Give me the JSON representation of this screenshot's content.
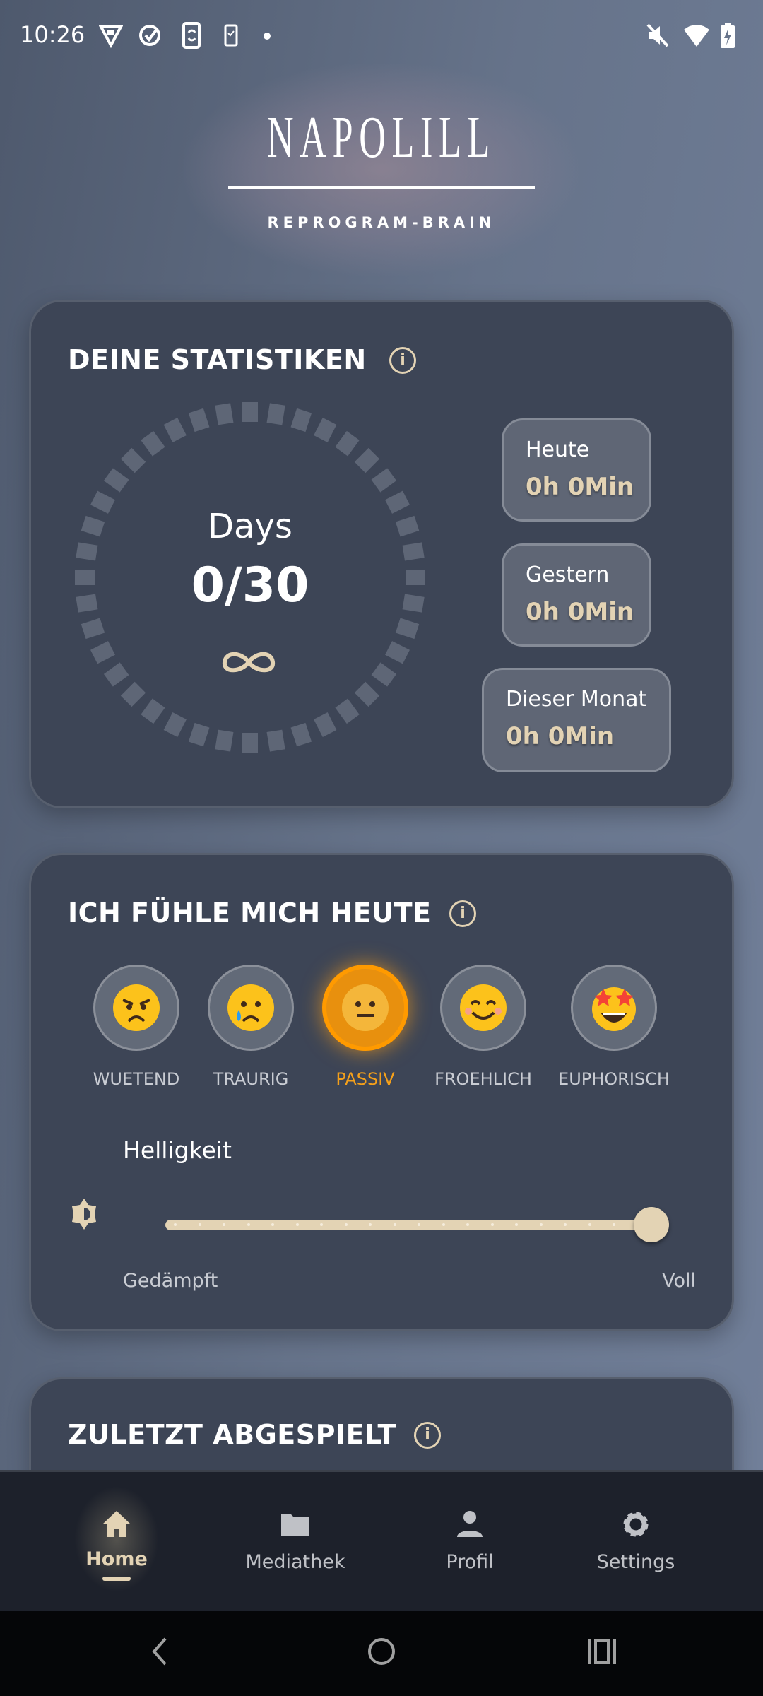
{
  "status_bar": {
    "time": "10:26",
    "icons_left": [
      "vpn-icon",
      "check-circle-icon",
      "phone-sync-icon",
      "phone-check-icon",
      "dot-icon"
    ],
    "icons_right": [
      "mute-icon",
      "wifi-icon",
      "battery-charging-icon"
    ]
  },
  "header": {
    "logo": "NAPOLILL",
    "tagline": "REPROGRAM-BRAIN"
  },
  "stats": {
    "title": "DEINE STATISTIKEN",
    "ring_label": "Days",
    "ring_value": "0/30",
    "progress_days": 0,
    "total_days": 30,
    "boxes": [
      {
        "label": "Heute",
        "value": "0h 0Min"
      },
      {
        "label": "Gestern",
        "value": "0h 0Min"
      },
      {
        "label": "Dieser Monat",
        "value": "0h 0Min"
      }
    ]
  },
  "mood": {
    "title": "ICH FÜHLE MICH HEUTE",
    "options": [
      {
        "label": "WUETEND",
        "icon": "angry-face"
      },
      {
        "label": "TRAURIG",
        "icon": "crying-face"
      },
      {
        "label": "PASSIV",
        "icon": "neutral-face",
        "selected": true
      },
      {
        "label": "FROEHLICH",
        "icon": "smiling-face"
      },
      {
        "label": "EUPHORISCH",
        "icon": "star-struck-face"
      }
    ],
    "brightness_label": "Helligkeit",
    "brightness_min": "Gedämpft",
    "brightness_max": "Voll",
    "brightness_value_percent": 100
  },
  "recent": {
    "title": "ZULETZT ABGESPIELT"
  },
  "nav": {
    "items": [
      {
        "label": "Home",
        "active": true
      },
      {
        "label": "Mediathek"
      },
      {
        "label": "Profil"
      },
      {
        "label": "Settings"
      }
    ]
  },
  "colors": {
    "accent": "#e3d3b4",
    "selected_mood": "#ff9a00",
    "card": "#3d4556",
    "nav": "#1d212b"
  }
}
